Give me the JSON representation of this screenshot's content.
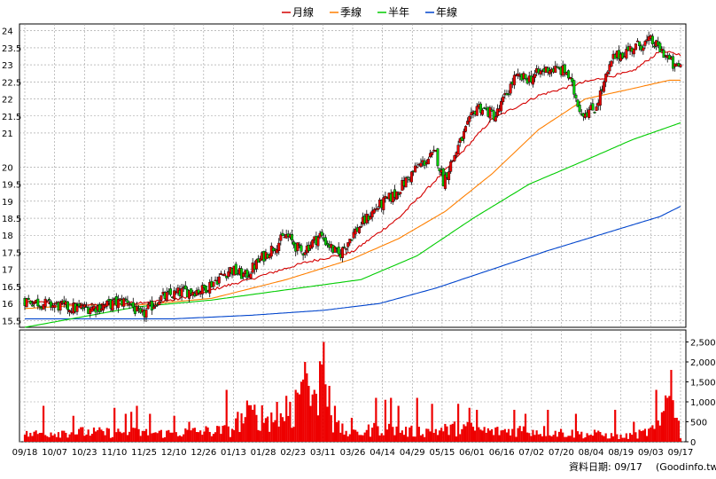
{
  "chart_data": [
    {
      "type": "candlestick",
      "legend": [
        {
          "name": "月線",
          "color": "#d40000"
        },
        {
          "name": "季線",
          "color": "#ff7f00"
        },
        {
          "name": "半年",
          "color": "#00cc00"
        },
        {
          "name": "年線",
          "color": "#0044cc"
        }
      ],
      "ylim": [
        15.3,
        24.2
      ],
      "yticks": [
        "15.5",
        "16",
        "16.5",
        "17",
        "17.5",
        "18",
        "18.5",
        "19",
        "19.5",
        "20",
        "21",
        "21.5",
        "22",
        "22.5",
        "23",
        "23.5",
        "24"
      ],
      "grid": true,
      "up_color": "#ee0000",
      "down_color": "#00cc00",
      "series": {
        "close_anchors": [
          [
            0,
            16.1
          ],
          [
            15,
            15.95
          ],
          [
            28,
            15.85
          ],
          [
            40,
            15.9
          ],
          [
            55,
            16.1
          ],
          [
            62,
            15.6
          ],
          [
            72,
            16.15
          ],
          [
            85,
            16.35
          ],
          [
            95,
            16.4
          ],
          [
            110,
            17.0
          ],
          [
            118,
            16.8
          ],
          [
            128,
            17.4
          ],
          [
            140,
            18.0
          ],
          [
            148,
            17.5
          ],
          [
            158,
            18.0
          ],
          [
            168,
            17.4
          ],
          [
            175,
            18.0
          ],
          [
            188,
            18.8
          ],
          [
            198,
            19.2
          ],
          [
            210,
            20.0
          ],
          [
            220,
            20.4
          ],
          [
            224,
            19.6
          ],
          [
            232,
            20.6
          ],
          [
            242,
            21.8
          ],
          [
            252,
            21.5
          ],
          [
            262,
            22.6
          ],
          [
            270,
            22.6
          ],
          [
            280,
            22.9
          ],
          [
            290,
            22.8
          ],
          [
            298,
            21.6
          ],
          [
            305,
            21.7
          ],
          [
            315,
            23.2
          ],
          [
            325,
            23.5
          ],
          [
            335,
            23.7
          ],
          [
            343,
            23.3
          ],
          [
            348,
            22.9
          ],
          [
            351,
            23.0
          ]
        ],
        "ma20_anchors": [
          [
            0,
            16.05
          ],
          [
            40,
            15.95
          ],
          [
            80,
            16.1
          ],
          [
            120,
            16.7
          ],
          [
            150,
            17.2
          ],
          [
            175,
            17.5
          ],
          [
            200,
            18.5
          ],
          [
            225,
            19.9
          ],
          [
            250,
            21.4
          ],
          [
            275,
            22.1
          ],
          [
            300,
            22.5
          ],
          [
            325,
            22.8
          ],
          [
            340,
            23.4
          ],
          [
            351,
            23.3
          ]
        ],
        "ma60_anchors": [
          [
            0,
            15.85
          ],
          [
            30,
            15.95
          ],
          [
            60,
            15.95
          ],
          [
            100,
            16.15
          ],
          [
            140,
            16.7
          ],
          [
            175,
            17.3
          ],
          [
            200,
            17.9
          ],
          [
            225,
            18.7
          ],
          [
            250,
            19.8
          ],
          [
            275,
            21.1
          ],
          [
            300,
            22.0
          ],
          [
            325,
            22.3
          ],
          [
            345,
            22.55
          ],
          [
            351,
            22.55
          ]
        ],
        "ma120_anchors": [
          [
            0,
            15.3
          ],
          [
            30,
            15.6
          ],
          [
            60,
            15.9
          ],
          [
            100,
            16.1
          ],
          [
            140,
            16.4
          ],
          [
            180,
            16.7
          ],
          [
            210,
            17.4
          ],
          [
            240,
            18.5
          ],
          [
            270,
            19.5
          ],
          [
            300,
            20.2
          ],
          [
            325,
            20.8
          ],
          [
            351,
            21.3
          ]
        ],
        "ma240_anchors": [
          [
            0,
            15.55
          ],
          [
            40,
            15.55
          ],
          [
            80,
            15.55
          ],
          [
            120,
            15.65
          ],
          [
            160,
            15.8
          ],
          [
            190,
            16.0
          ],
          [
            220,
            16.45
          ],
          [
            250,
            17.0
          ],
          [
            280,
            17.55
          ],
          [
            310,
            18.05
          ],
          [
            340,
            18.55
          ],
          [
            351,
            18.85
          ]
        ]
      }
    },
    {
      "type": "bar",
      "name": "volume",
      "color": "#ee0000",
      "ylim": [
        0,
        2800
      ],
      "yticks": [
        "0",
        "500",
        "1,000",
        "1,500",
        "2,000",
        "2,500"
      ],
      "volume_anchors": [
        [
          0,
          180
        ],
        [
          20,
          250
        ],
        [
          40,
          230
        ],
        [
          60,
          230
        ],
        [
          75,
          210
        ],
        [
          95,
          260
        ],
        [
          110,
          280
        ],
        [
          120,
          700
        ],
        [
          135,
          550
        ],
        [
          145,
          700
        ],
        [
          150,
          2000
        ],
        [
          155,
          550
        ],
        [
          160,
          2500
        ],
        [
          165,
          400
        ],
        [
          175,
          180
        ],
        [
          190,
          350
        ],
        [
          205,
          250
        ],
        [
          220,
          280
        ],
        [
          235,
          350
        ],
        [
          250,
          250
        ],
        [
          265,
          300
        ],
        [
          280,
          260
        ],
        [
          295,
          200
        ],
        [
          310,
          170
        ],
        [
          320,
          120
        ],
        [
          330,
          200
        ],
        [
          340,
          350
        ],
        [
          346,
          1800
        ],
        [
          351,
          100
        ]
      ],
      "spikes": [
        [
          10,
          900
        ],
        [
          26,
          650
        ],
        [
          48,
          850
        ],
        [
          54,
          700
        ],
        [
          57,
          750
        ],
        [
          60,
          900
        ],
        [
          67,
          700
        ],
        [
          80,
          650
        ],
        [
          88,
          500
        ],
        [
          108,
          1300
        ],
        [
          114,
          750
        ],
        [
          122,
          800
        ],
        [
          135,
          1000
        ],
        [
          140,
          1150
        ],
        [
          142,
          1000
        ],
        [
          145,
          1300
        ],
        [
          150,
          2000
        ],
        [
          152,
          1400
        ],
        [
          155,
          1300
        ],
        [
          160,
          2500
        ],
        [
          163,
          1400
        ],
        [
          166,
          900
        ],
        [
          175,
          600
        ],
        [
          188,
          1100
        ],
        [
          193,
          1050
        ],
        [
          196,
          1100
        ],
        [
          200,
          900
        ],
        [
          210,
          1100
        ],
        [
          218,
          950
        ],
        [
          232,
          950
        ],
        [
          238,
          850
        ],
        [
          242,
          800
        ],
        [
          262,
          800
        ],
        [
          268,
          700
        ],
        [
          280,
          800
        ],
        [
          295,
          700
        ],
        [
          305,
          300
        ],
        [
          316,
          800
        ],
        [
          326,
          500
        ],
        [
          338,
          1300
        ],
        [
          344,
          1100
        ],
        [
          346,
          1800
        ],
        [
          349,
          600
        ]
      ]
    }
  ],
  "x_axis": {
    "labels": [
      "09/18",
      "10/07",
      "10/23",
      "11/10",
      "11/25",
      "12/10",
      "12/26",
      "01/13",
      "01/28",
      "02/23",
      "03/11",
      "03/26",
      "04/14",
      "04/29",
      "05/15",
      "06/01",
      "06/16",
      "07/02",
      "07/20",
      "08/04",
      "08/19",
      "09/03",
      "09/17"
    ]
  },
  "footer": {
    "data_date": "資料日期: 09/17",
    "source": "(Goodinfo.tw)"
  }
}
